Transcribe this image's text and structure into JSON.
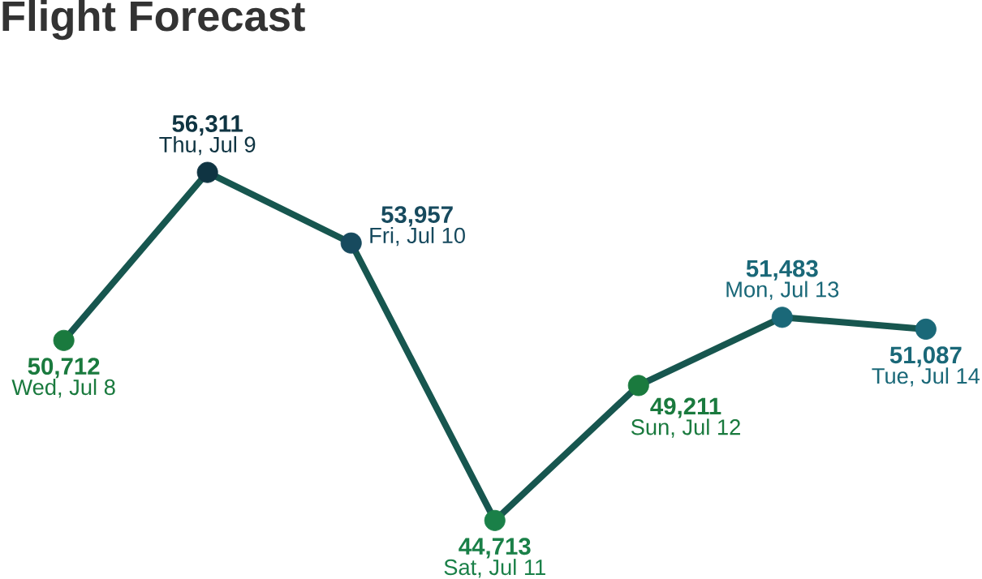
{
  "chart_data": {
    "type": "line",
    "title": "Flight Forecast",
    "categories": [
      "Wed, Jul 8",
      "Thu, Jul 9",
      "Fri, Jul 10",
      "Sat, Jul 11",
      "Sun, Jul 12",
      "Mon, Jul 13",
      "Tue, Jul 14"
    ],
    "values": [
      50712,
      56311,
      53957,
      44713,
      49211,
      51483,
      51087
    ],
    "value_labels": [
      "50,712",
      "56,311",
      "53,957",
      "44,713",
      "49,211",
      "51,483",
      "51,087"
    ],
    "colors": [
      "#1a7a3e",
      "#0f3442",
      "#174a5e",
      "#1a8048",
      "#1a7a3e",
      "#1a6878",
      "#1a6878"
    ],
    "color": "#17564f",
    "marker": "circle"
  }
}
